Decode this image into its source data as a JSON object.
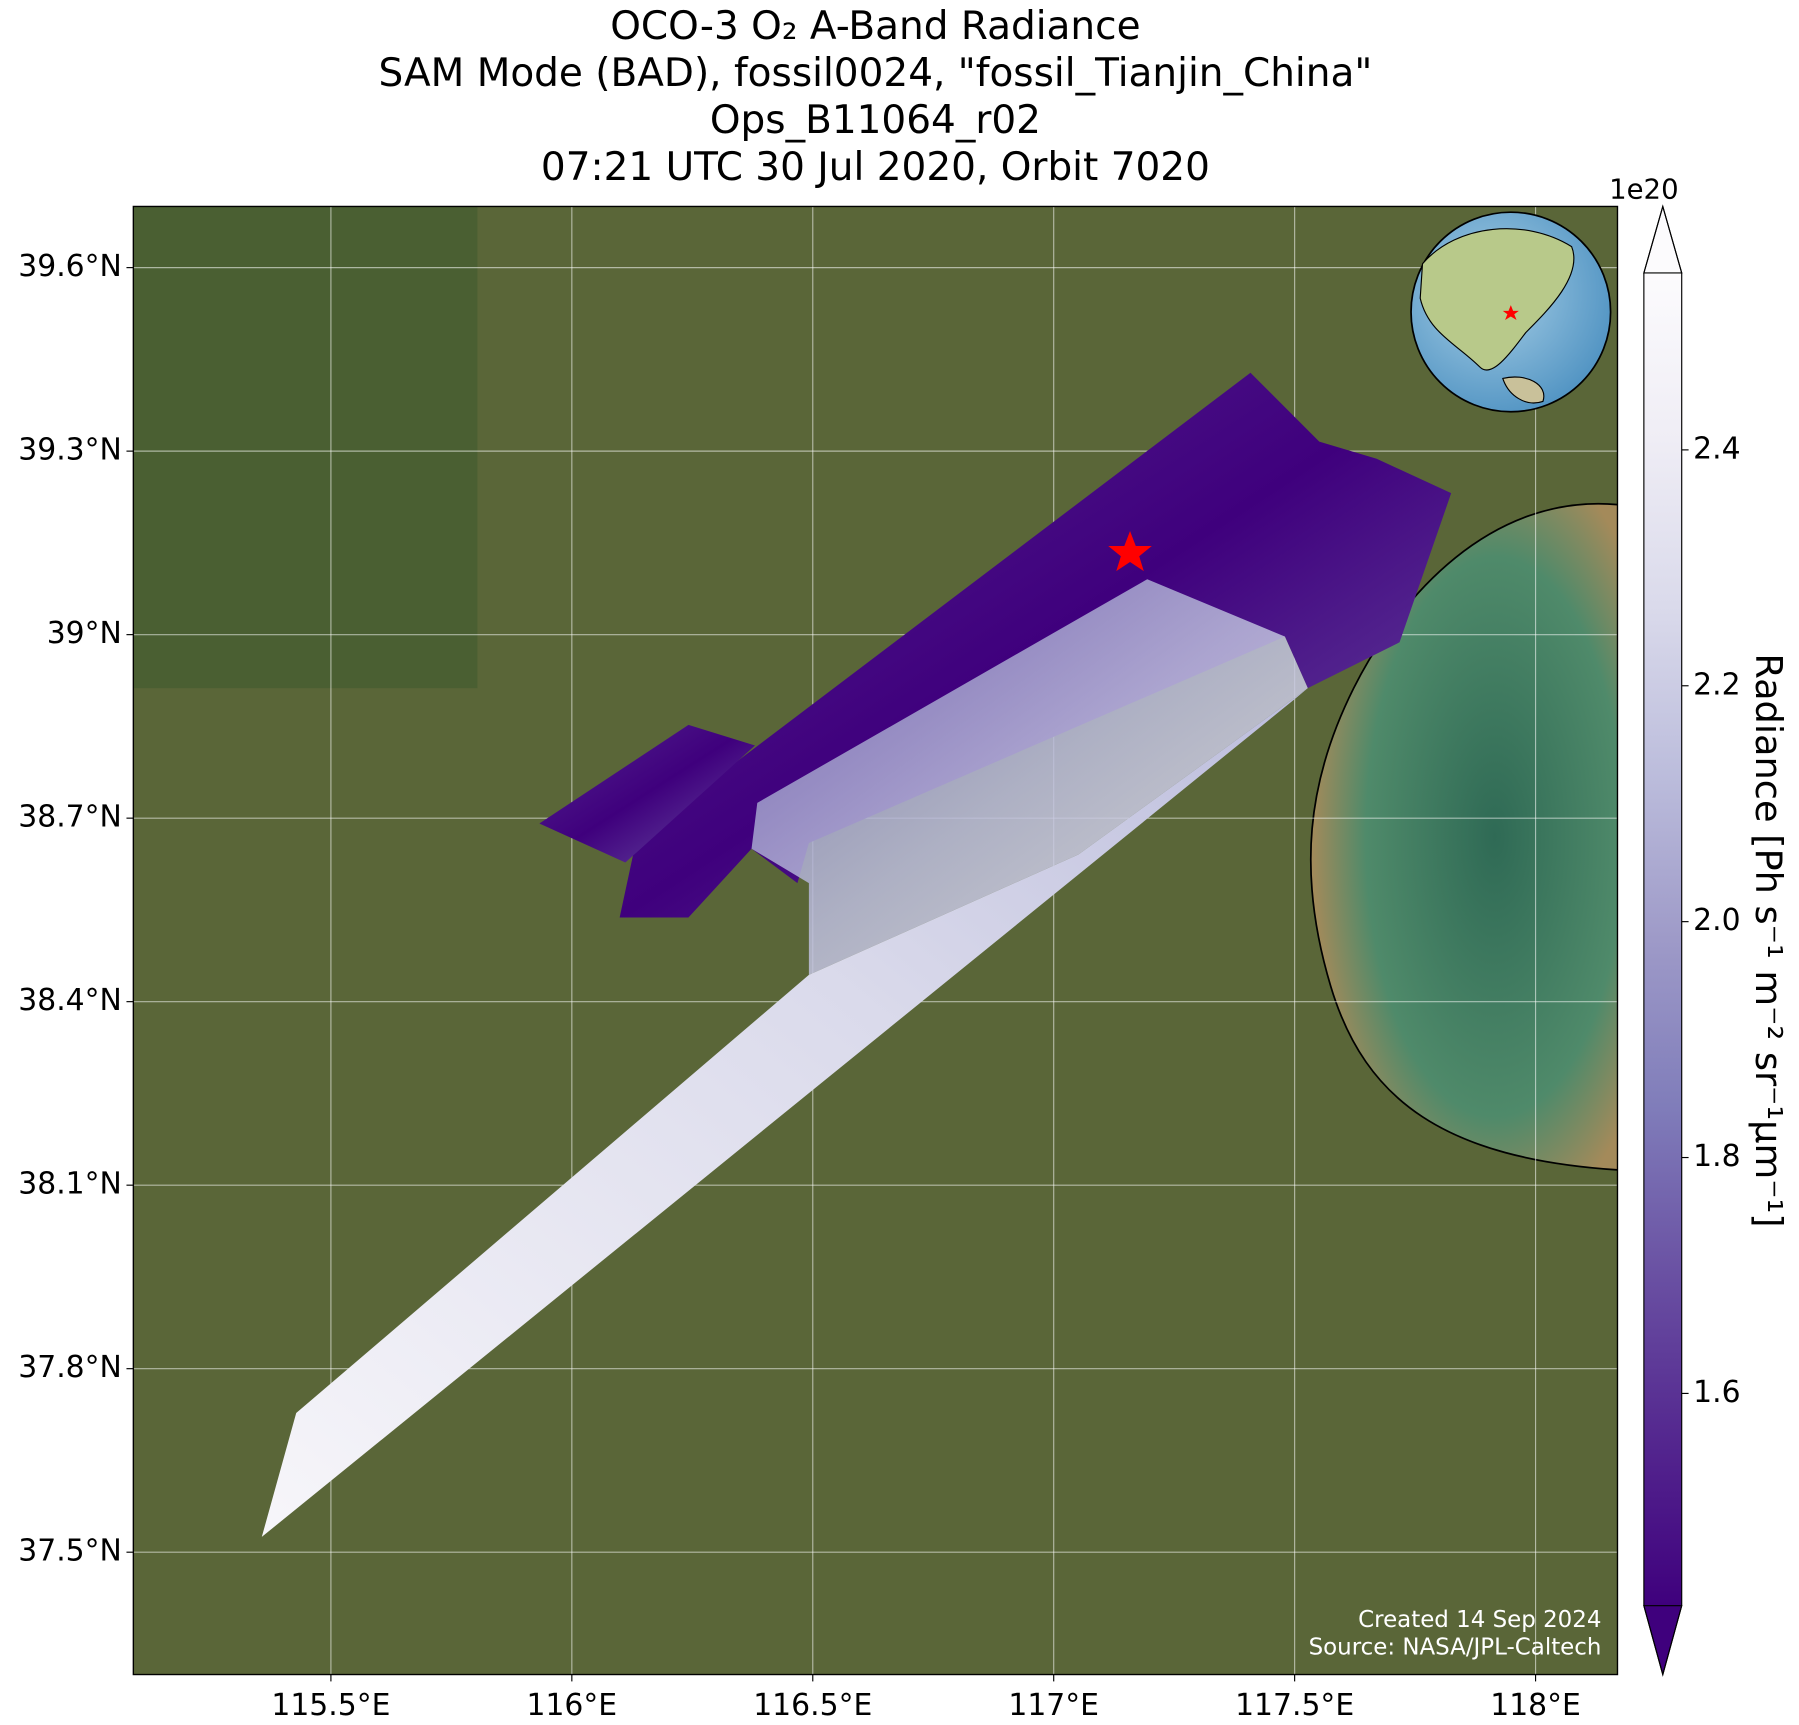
{
  "chart_data": {
    "type": "map",
    "title": [
      "OCO-3 O₂ A-Band Radiance",
      "SAM Mode (BAD), fossil0024, \"fossil_Tianjin_China\"",
      "Ops_B11064_r02",
      "07:21 UTC 30 Jul 2020, Orbit 7020"
    ],
    "xlim": [
      115.09,
      118.17
    ],
    "ylim": [
      37.3,
      39.7
    ],
    "xticks": [
      {
        "value": 115.5,
        "label": "115.5°E"
      },
      {
        "value": 116,
        "label": "116°E"
      },
      {
        "value": 116.5,
        "label": "116.5°E"
      },
      {
        "value": 117,
        "label": "117°E"
      },
      {
        "value": 117.5,
        "label": "117.5°E"
      },
      {
        "value": 118,
        "label": "118°E"
      }
    ],
    "yticks": [
      {
        "value": 37.5,
        "label": "37.5°N"
      },
      {
        "value": 37.8,
        "label": "37.8°N"
      },
      {
        "value": 38.1,
        "label": "38.1°N"
      },
      {
        "value": 38.4,
        "label": "38.4°N"
      },
      {
        "value": 38.7,
        "label": "38.7°N"
      },
      {
        "value": 39,
        "label": "39°N"
      },
      {
        "value": 39.3,
        "label": "39.3°N"
      },
      {
        "value": 39.6,
        "label": "39.6°N"
      }
    ],
    "grid": true,
    "colorbar": {
      "label": "Radiance [Ph s⁻¹ m⁻² sr⁻¹μm⁻¹]",
      "offset_label": "1e20",
      "clim": [
        1.42,
        2.55
      ],
      "ticks": [
        1.6,
        1.8,
        {
          "value": 2,
          "label": "2.0"
        },
        2.2,
        2.4
      ],
      "colors": [
        "#3f007d",
        "#54278f",
        "#6a51a3",
        "#807dba",
        "#9e9ac8",
        "#bcbddc",
        "#dadaeb",
        "#efedf5",
        "#fcfbfd"
      ]
    },
    "annotations": [
      "Created 14 Sep 2024",
      "Source: NASA/JPL-Caltech"
    ]
  }
}
